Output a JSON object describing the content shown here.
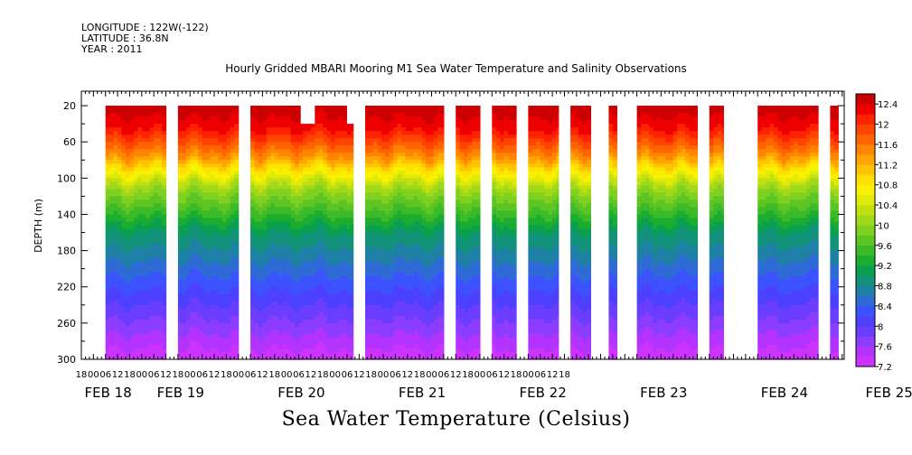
{
  "header": {
    "longitude": "LONGITUDE : 122W(-122)",
    "latitude": "LATITUDE : 36.8N",
    "year": "YEAR : 2011"
  },
  "title": "Hourly Gridded MBARI Mooring M1 Sea Water Temperature and Salinity Observations",
  "footer": "Sea Water Temperature (Celsius)",
  "chart_data": {
    "type": "heatmap",
    "ylabel": "DEPTH (m)",
    "ylim": [
      300,
      10
    ],
    "y_ticks": [
      20,
      60,
      100,
      140,
      180,
      220,
      260,
      300
    ],
    "x_hour_ticks": [
      "18",
      "00",
      "06",
      "12",
      "18",
      "00",
      "06",
      "12",
      "18",
      "00",
      "06",
      "12",
      "18",
      "00",
      "06",
      "12",
      "18",
      "00",
      "06",
      "12",
      "18",
      "00",
      "06",
      "12",
      "18",
      "00",
      "06",
      "12",
      "18",
      "00",
      "06",
      "12",
      "18",
      "00",
      "06",
      "12",
      "18",
      "00",
      "06",
      "12",
      "18"
    ],
    "x_dates": [
      "FEB 18",
      "FEB 19",
      "FEB 20",
      "FEB 21",
      "FEB 22",
      "FEB 23",
      "FEB 24",
      "FEB 25"
    ],
    "colorbar": {
      "levels": [
        7.2,
        7.4,
        7.6,
        7.8,
        8,
        8.2,
        8.4,
        8.6,
        8.8,
        9,
        9.2,
        9.4,
        9.6,
        9.8,
        10,
        10.2,
        10.4,
        10.6,
        10.8,
        11,
        11.2,
        11.4,
        11.6,
        11.8,
        12,
        12.2,
        12.4,
        12.6
      ],
      "labels": [
        "12.4",
        "12",
        "11.6",
        "11.2",
        "10.8",
        "10.4",
        "10",
        "9.6",
        "9.2",
        "8.8",
        "8.4",
        "8",
        "7.6",
        "7.2"
      ],
      "colors": [
        "#cc33ff",
        "#b333ff",
        "#8c3dff",
        "#6a3dff",
        "#4d40ff",
        "#3d52ff",
        "#2e6bd6",
        "#1f80a6",
        "#12927a",
        "#0aa050",
        "#1aad30",
        "#3cba28",
        "#5cc524",
        "#80d020",
        "#a0d81a",
        "#c2e010",
        "#e0ea08",
        "#f8f200",
        "#ffe000",
        "#ffc400",
        "#ffa400",
        "#ff8400",
        "#ff6400",
        "#ff4400",
        "#ff2200",
        "#ee0000",
        "#cc0000"
      ]
    },
    "segments": [
      {
        "start_hour": 6,
        "end_hour": 36,
        "surface_depth": 20
      },
      {
        "start_hour": 42,
        "end_hour": 72,
        "surface_depth": 20
      },
      {
        "start_hour": 78,
        "end_hour": 103,
        "surface_depth": 20
      },
      {
        "start_hour": 96,
        "end_hour": 108,
        "surface_depth": 20
      },
      {
        "start_hour": 108,
        "end_hour": 129,
        "surface_depth": 20
      },
      {
        "start_hour": 135,
        "end_hour": 174,
        "surface_depth": 20
      },
      {
        "start_hour": 180,
        "end_hour": 192,
        "surface_depth": 20
      },
      {
        "start_hour": 198,
        "end_hour": 204,
        "surface_depth": 20
      },
      {
        "start_hour": 204,
        "end_hour": 210,
        "surface_depth": 20
      },
      {
        "start_hour": 216,
        "end_hour": 231,
        "surface_depth": 20
      },
      {
        "start_hour": 237,
        "end_hour": 247,
        "surface_depth": 20
      },
      {
        "start_hour": 256,
        "end_hour": 260,
        "surface_depth": 20
      },
      {
        "start_hour": 270,
        "end_hour": 278,
        "surface_depth": 20
      },
      {
        "start_hour": 278,
        "end_hour": 300,
        "surface_depth": 20
      },
      {
        "start_hour": 306,
        "end_hour": 313,
        "surface_depth": 20
      },
      {
        "start_hour": 330,
        "end_hour": 360,
        "surface_depth": 20
      },
      {
        "start_hour": 366,
        "end_hour": 370,
        "surface_depth": 20
      }
    ]
  }
}
